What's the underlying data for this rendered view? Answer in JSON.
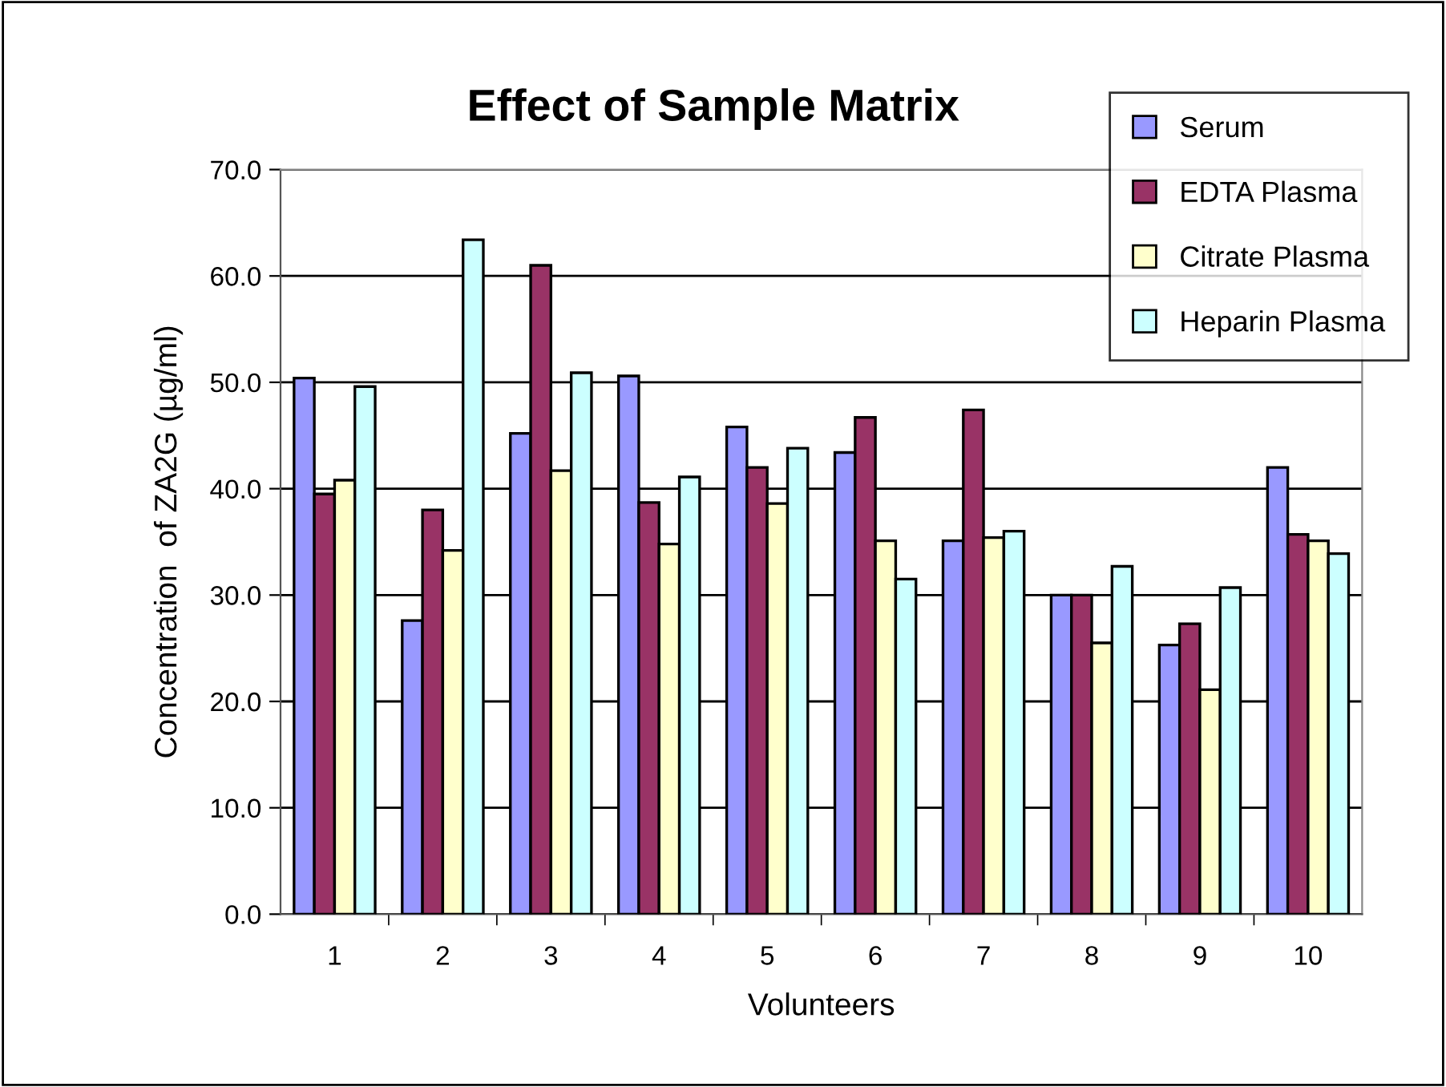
{
  "chart_data": {
    "type": "bar",
    "title": "Effect of Sample Matrix",
    "xlabel": "Volunteers",
    "ylabel": "Concentration  of ZA2G (µg/ml)",
    "categories": [
      "1",
      "2",
      "3",
      "4",
      "5",
      "6",
      "7",
      "8",
      "9",
      "10"
    ],
    "series": [
      {
        "name": "Serum",
        "color": "#9999ff",
        "values": [
          50.4,
          27.6,
          45.2,
          50.6,
          45.8,
          43.4,
          35.1,
          30.0,
          25.3,
          42.0
        ]
      },
      {
        "name": "EDTA Plasma",
        "color": "#993366",
        "values": [
          39.5,
          38.0,
          61.0,
          38.7,
          42.0,
          46.7,
          47.4,
          30.0,
          27.3,
          35.7
        ]
      },
      {
        "name": "Citrate Plasma",
        "color": "#ffffcc",
        "values": [
          40.8,
          34.2,
          41.7,
          34.8,
          38.6,
          35.1,
          35.4,
          25.5,
          21.1,
          35.1
        ]
      },
      {
        "name": "Heparin Plasma",
        "color": "#ccffff",
        "values": [
          49.6,
          63.4,
          50.9,
          41.1,
          43.8,
          31.5,
          36.0,
          32.7,
          30.7,
          33.9
        ]
      }
    ],
    "ylim": [
      0,
      70
    ],
    "yticks": [
      {
        "value": 0,
        "label": "0.0"
      },
      {
        "value": 10,
        "label": "10.0"
      },
      {
        "value": 20,
        "label": "20.0"
      },
      {
        "value": 30,
        "label": "30.0"
      },
      {
        "value": 40,
        "label": "40.0"
      },
      {
        "value": 50,
        "label": "50.0"
      },
      {
        "value": 60,
        "label": "60.0"
      },
      {
        "value": 70,
        "label": "70.0"
      }
    ],
    "grid": "y",
    "legend": "top right"
  }
}
